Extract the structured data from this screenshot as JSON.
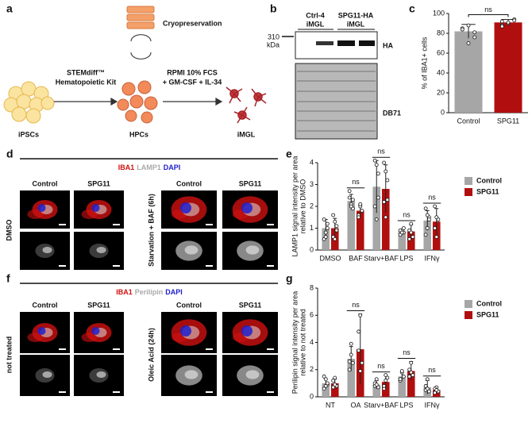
{
  "labels": [
    "a",
    "b",
    "c",
    "d",
    "e",
    "f",
    "g"
  ],
  "diagram": {
    "cryopreservation": "Cryopreservation",
    "kit": [
      "STEMdiff™",
      "Hematopoietic Kit"
    ],
    "medium": [
      "RPMI 10% FCS",
      "+ GM-CSF + IL-34"
    ],
    "stages": [
      "iPSCs",
      "HPCs",
      "iMGL"
    ]
  },
  "blot": {
    "lanes": [
      [
        "Ctrl-4",
        "iMGL"
      ],
      [
        "SPG11-HA",
        "iMGL"
      ]
    ],
    "marker": [
      "310",
      "kDa"
    ],
    "bands": [
      "HA",
      "DB71"
    ]
  },
  "microscopy": [
    {
      "stains": [
        {
          "text": "IBA1",
          "color": "#d01010"
        },
        {
          "text": "LAMP1",
          "color": "#aaaaaa"
        },
        {
          "text": "DAPI",
          "color": "#2020cc"
        }
      ],
      "columns": [
        "Control",
        "SPG11",
        "Control",
        "SPG11"
      ],
      "rows": [
        "DMSO",
        "Starvation + BAF (6h)"
      ]
    },
    {
      "stains": [
        {
          "text": "IBA1",
          "color": "#d01010"
        },
        {
          "text": "Perilipin",
          "color": "#aaaaaa"
        },
        {
          "text": "DAPI",
          "color": "#2020cc"
        }
      ],
      "columns": [
        "Control",
        "SPG11",
        "Control",
        "SPG11"
      ],
      "rows": [
        "not treated",
        "Oleic Acid (24h)"
      ]
    }
  ],
  "chart_data": [
    {
      "type": "bar",
      "ylabel": [
        "% of IBA1+ cells"
      ],
      "categories": [
        "Control",
        "SPG11"
      ],
      "values": [
        82,
        91
      ],
      "errors": [
        7,
        3
      ],
      "colors": [
        "#a6a6a6",
        "#b10f0f"
      ],
      "points": [
        [
          84,
          88,
          76,
          85,
          70,
          81,
          84
        ],
        [
          92,
          90,
          94,
          88,
          91,
          93,
          87
        ]
      ],
      "significance": [
        null,
        "ns"
      ],
      "ylim": [
        0,
        100
      ],
      "yticks": [
        0,
        20,
        40,
        60,
        80,
        100
      ]
    },
    {
      "type": "grouped-bar",
      "ylabel": [
        "LAMP1 signal intensity per area",
        "relative to DMSO"
      ],
      "categories": [
        "DMSO",
        "BAF",
        "Starv+BAF",
        "LPS",
        "IFNγ"
      ],
      "series": [
        {
          "name": "Control",
          "color": "#a6a6a6",
          "values": [
            1.0,
            2.25,
            2.9,
            0.85,
            1.35
          ],
          "errors": [
            0.4,
            0.3,
            1.2,
            0.1,
            0.45
          ],
          "points": [
            [
              0.5,
              0.8,
              1.0,
              1.4,
              0.6,
              1.2
            ],
            [
              2.7,
              2.1,
              1.9,
              2.4,
              2.0,
              2.3
            ],
            [
              4.1,
              1.4,
              3.5,
              2.0,
              3.9,
              2.4
            ],
            [
              0.7,
              0.9,
              0.8,
              0.9,
              0.8,
              1.0
            ],
            [
              1.9,
              1.0,
              1.5,
              0.7,
              1.6,
              1.4
            ]
          ]
        },
        {
          "name": "SPG11",
          "color": "#b10f0f",
          "values": [
            1.0,
            1.8,
            2.8,
            0.85,
            1.3
          ],
          "errors": [
            0.45,
            0.25,
            1.1,
            0.3,
            0.6
          ],
          "points": [
            [
              0.6,
              1.3,
              0.9,
              1.6,
              0.5,
              1.1
            ],
            [
              1.6,
              2.0,
              1.8,
              1.5,
              2.1
            ],
            [
              4.0,
              1.5,
              3.2,
              2.2,
              3.6,
              2.3
            ],
            [
              0.5,
              1.2,
              0.6,
              0.9,
              0.8
            ],
            [
              2.0,
              0.6,
              1.4,
              1.0,
              1.5
            ]
          ]
        }
      ],
      "significance": [
        null,
        "ns",
        "ns",
        "ns",
        "ns"
      ],
      "ylim": [
        0,
        4
      ],
      "yticks": [
        0,
        1,
        2,
        3,
        4
      ],
      "legend": "top-right"
    },
    {
      "type": "grouped-bar",
      "ylabel": [
        "Perilipin signal intensity per area",
        "relative to not treated"
      ],
      "categories": [
        "NT",
        "OA",
        "Starv+BAF",
        "LPS",
        "IFNγ"
      ],
      "series": [
        {
          "name": "Control",
          "color": "#a6a6a6",
          "values": [
            1.0,
            2.8,
            0.9,
            1.5,
            0.7
          ],
          "errors": [
            0.35,
            0.9,
            0.3,
            0.3,
            0.5
          ],
          "points": [
            [
              0.6,
              1.3,
              0.9,
              1.5,
              0.8,
              1.0
            ],
            [
              2.0,
              3.9,
              2.5,
              2.6,
              3.1
            ],
            [
              0.8,
              1.3,
              0.7,
              1.0,
              0.9
            ],
            [
              1.2,
              1.8,
              1.5,
              1.3,
              1.9
            ],
            [
              0.5,
              1.3,
              0.4,
              0.8,
              0.6
            ]
          ]
        },
        {
          "name": "SPG11",
          "color": "#b10f0f",
          "values": [
            1.0,
            3.5,
            1.1,
            1.9,
            0.5
          ],
          "errors": [
            0.3,
            2.6,
            0.5,
            0.7,
            0.25
          ],
          "points": [
            [
              0.7,
              1.4,
              0.8,
              1.2,
              0.9
            ],
            [
              4.8,
              1.9,
              2.5,
              3.4,
              6.0
            ],
            [
              0.6,
              1.6,
              1.4,
              0.8,
              1.2
            ],
            [
              1.5,
              2.5,
              1.6,
              2.0,
              1.8
            ],
            [
              0.3,
              0.7,
              0.4,
              0.6,
              0.5
            ]
          ]
        }
      ],
      "significance": [
        null,
        "ns",
        "ns",
        "ns",
        "ns"
      ],
      "ylim": [
        0,
        8
      ],
      "yticks": [
        0,
        2,
        4,
        6,
        8
      ],
      "legend": "top-right"
    }
  ]
}
